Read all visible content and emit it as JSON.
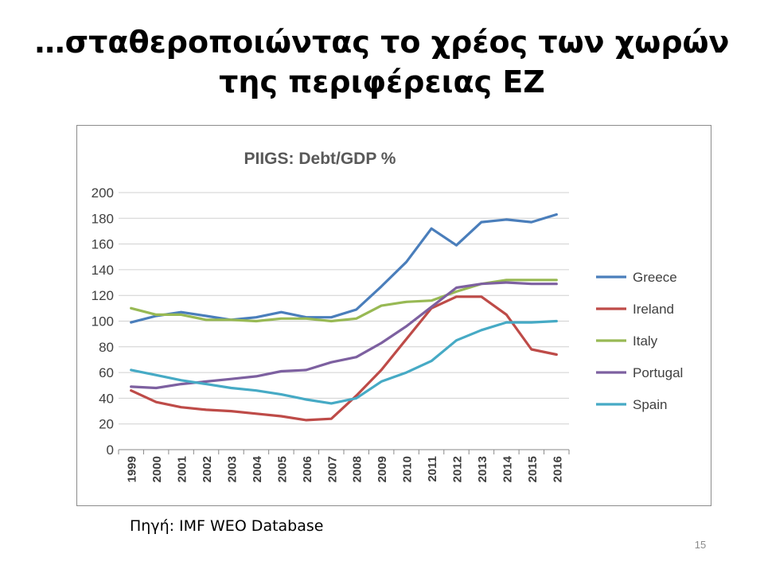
{
  "slide": {
    "title_line1": "…σταθεροποιώντας το χρέος των χωρών",
    "title_line2": "της περιφέρειας ΕΖ",
    "source": "Πηγή: IMF WEO Database",
    "page_number": "15"
  },
  "chart_data": {
    "type": "line",
    "title": "PIIGS: Debt/GDP %",
    "xlabel": "",
    "ylabel": "",
    "ylim": [
      0,
      200
    ],
    "yticks": [
      0,
      20,
      40,
      60,
      80,
      100,
      120,
      140,
      160,
      180,
      200
    ],
    "grid": true,
    "legend_position": "right",
    "categories": [
      "1999",
      "2000",
      "2001",
      "2002",
      "2003",
      "2004",
      "2005",
      "2006",
      "2007",
      "2008",
      "2009",
      "2010",
      "2011",
      "2012",
      "2013",
      "2014",
      "2015",
      "2016"
    ],
    "series": [
      {
        "name": "Greece",
        "color": "#4a7ebb",
        "values": [
          99,
          104,
          107,
          104,
          101,
          103,
          107,
          103,
          103,
          109,
          127,
          146,
          172,
          159,
          177,
          179,
          177,
          183
        ]
      },
      {
        "name": "Ireland",
        "color": "#be4b48",
        "values": [
          46,
          37,
          33,
          31,
          30,
          28,
          26,
          23,
          24,
          42,
          62,
          86,
          110,
          119,
          119,
          105,
          78,
          74
        ]
      },
      {
        "name": "Italy",
        "color": "#98b954",
        "values": [
          110,
          105,
          105,
          101,
          101,
          100,
          102,
          102,
          100,
          102,
          112,
          115,
          116,
          123,
          129,
          132,
          132,
          132
        ]
      },
      {
        "name": "Portugal",
        "color": "#7d60a0",
        "values": [
          49,
          48,
          51,
          53,
          55,
          57,
          61,
          62,
          68,
          72,
          83,
          96,
          111,
          126,
          129,
          130,
          129,
          129
        ]
      },
      {
        "name": "Spain",
        "color": "#46aac5",
        "values": [
          62,
          58,
          54,
          51,
          48,
          46,
          43,
          39,
          36,
          40,
          53,
          60,
          69,
          85,
          93,
          99,
          99,
          100
        ]
      }
    ]
  }
}
